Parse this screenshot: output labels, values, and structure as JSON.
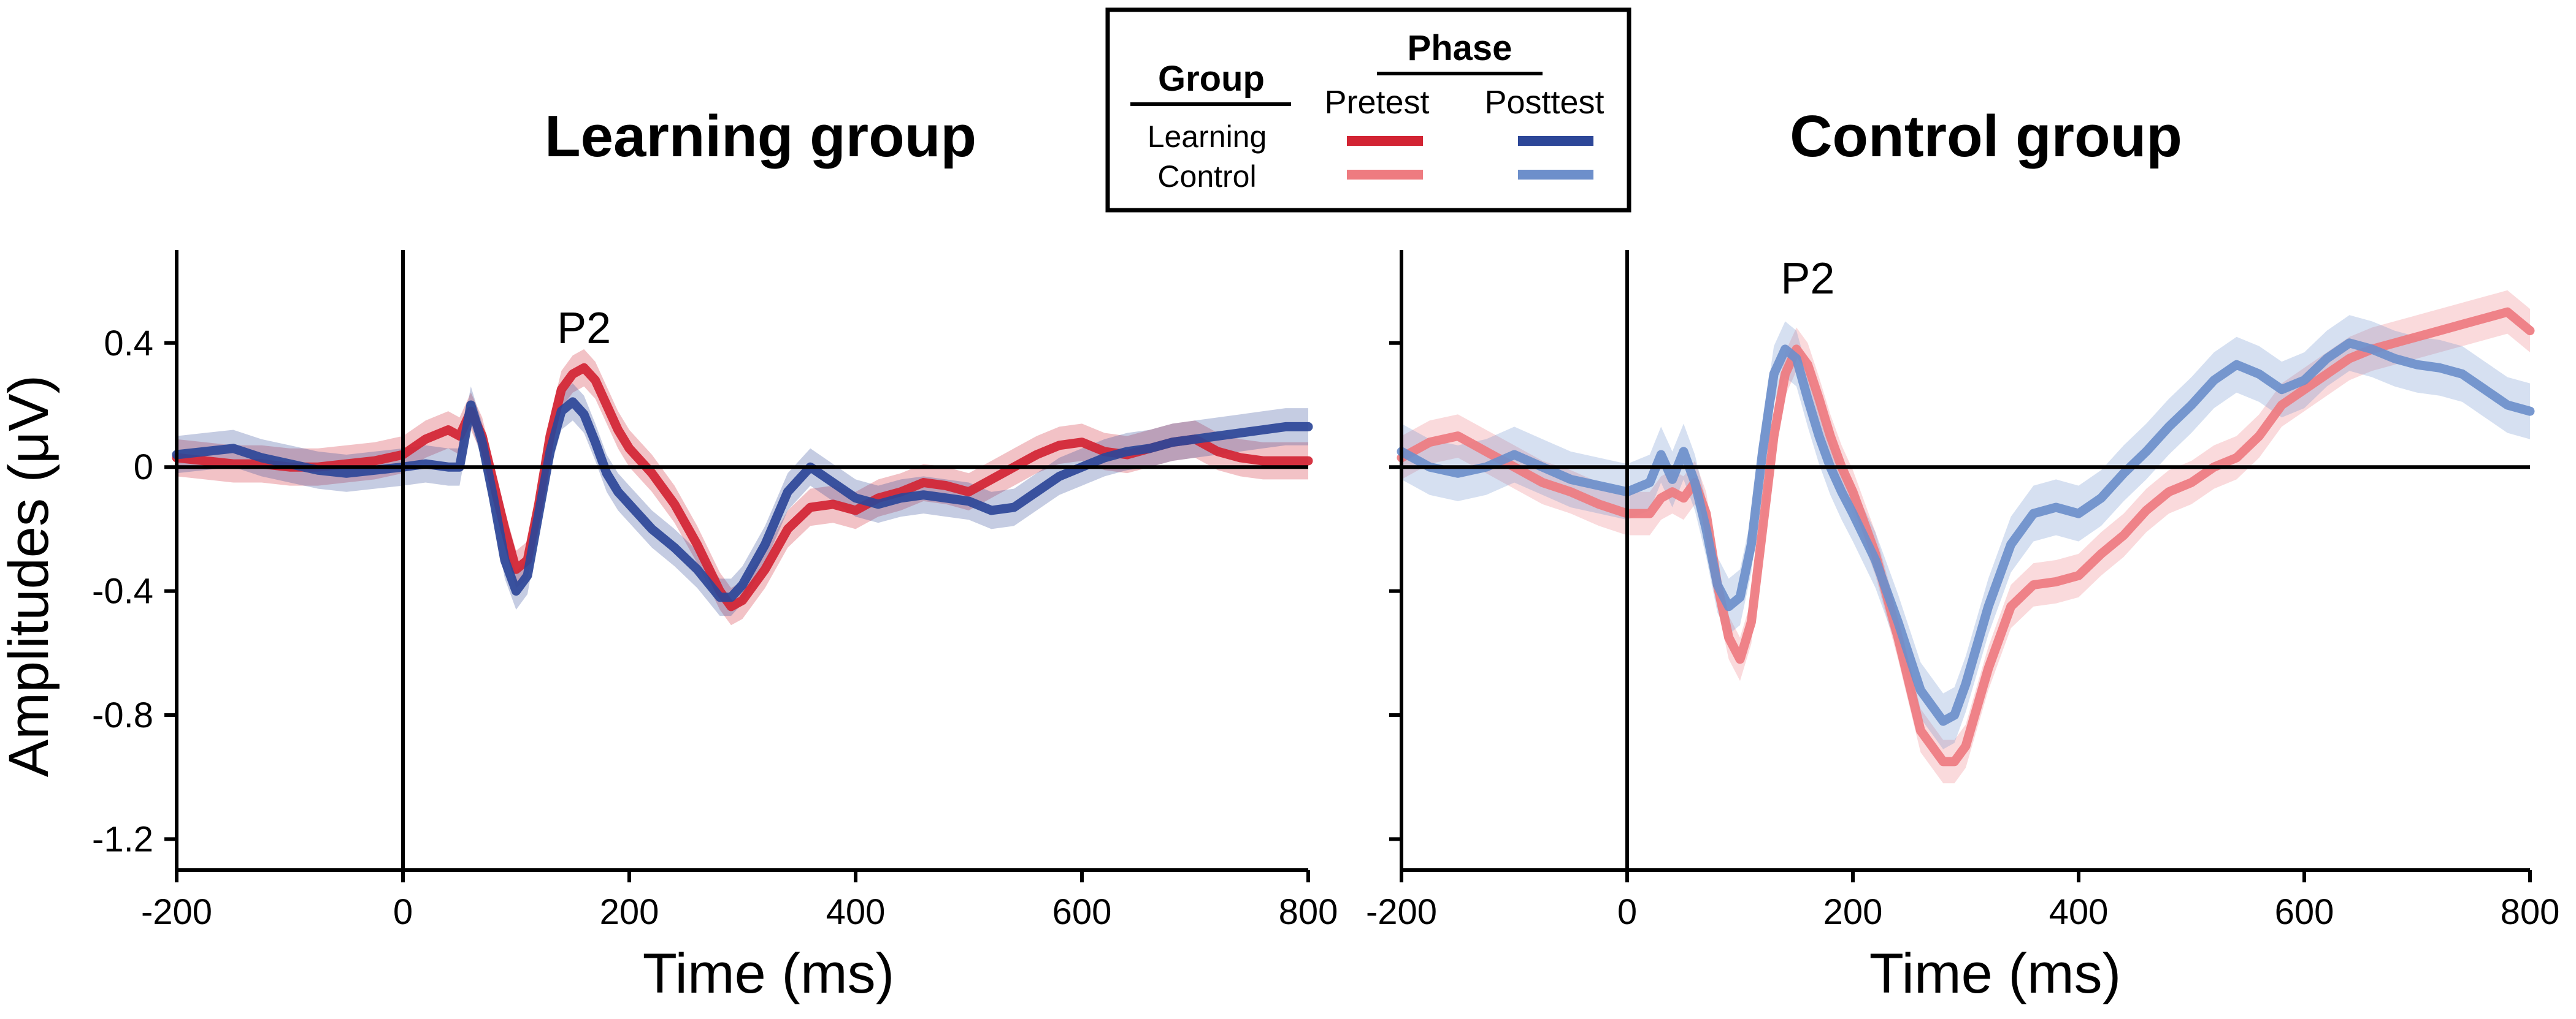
{
  "colors": {
    "learning_pretest": "#D22433",
    "learning_posttest": "#2D4798",
    "control_pretest": "#EE7B80",
    "control_posttest": "#6D8FCB",
    "axis": "#000000"
  },
  "legend": {
    "group_header": "Group",
    "phase_header": "Phase",
    "pretest_label": "Pretest",
    "posttest_label": "Posttest",
    "learning_label": "Learning",
    "control_label": "Control"
  },
  "y_axis_label": "Amplitudes (μV)",
  "chart_data": [
    {
      "type": "line",
      "title": "Learning group",
      "xlabel": "Time (ms)",
      "ylabel": "Amplitudes (μV)",
      "xlim": [
        -200,
        800
      ],
      "ylim": [
        -1.3,
        0.7
      ],
      "xticks": [
        -200,
        0,
        200,
        400,
        600,
        800
      ],
      "xtick_labels": [
        "-200",
        "0",
        "200",
        "400",
        "600",
        "800"
      ],
      "yticks": [
        0.4,
        0,
        -0.4,
        -0.8,
        -1.2
      ],
      "ytick_labels": [
        "0.4",
        "0",
        "-0.4",
        "-0.8",
        "-1.2"
      ],
      "annotation": {
        "text": "P2",
        "x": 160,
        "y": 0.4
      },
      "x": [
        -200,
        -175,
        -150,
        -125,
        -100,
        -75,
        -50,
        -25,
        0,
        20,
        40,
        50,
        60,
        70,
        80,
        90,
        100,
        110,
        120,
        130,
        140,
        150,
        160,
        170,
        180,
        190,
        200,
        220,
        240,
        260,
        280,
        290,
        300,
        320,
        340,
        360,
        380,
        400,
        420,
        440,
        460,
        480,
        500,
        520,
        540,
        560,
        580,
        600,
        620,
        640,
        660,
        680,
        700,
        720,
        740,
        760,
        780,
        800
      ],
      "series": [
        {
          "name": "Pretest",
          "color_key": "learning_pretest",
          "values": [
            0.03,
            0.02,
            0.01,
            0.01,
            0.0,
            0.0,
            0.01,
            0.02,
            0.04,
            0.09,
            0.12,
            0.1,
            0.18,
            0.1,
            -0.05,
            -0.2,
            -0.33,
            -0.3,
            -0.12,
            0.1,
            0.25,
            0.3,
            0.32,
            0.28,
            0.2,
            0.12,
            0.06,
            -0.02,
            -0.12,
            -0.25,
            -0.4,
            -0.45,
            -0.43,
            -0.33,
            -0.2,
            -0.13,
            -0.12,
            -0.14,
            -0.1,
            -0.08,
            -0.05,
            -0.06,
            -0.08,
            -0.04,
            0.0,
            0.04,
            0.07,
            0.08,
            0.05,
            0.04,
            0.06,
            0.08,
            0.09,
            0.05,
            0.03,
            0.02,
            0.02,
            0.02
          ],
          "error": 0.06
        },
        {
          "name": "Posttest",
          "color_key": "learning_posttest",
          "values": [
            0.04,
            0.05,
            0.06,
            0.03,
            0.01,
            -0.01,
            -0.02,
            -0.01,
            0.0,
            0.01,
            0.0,
            0.0,
            0.2,
            0.08,
            -0.1,
            -0.3,
            -0.4,
            -0.35,
            -0.15,
            0.05,
            0.18,
            0.21,
            0.17,
            0.08,
            -0.02,
            -0.08,
            -0.12,
            -0.2,
            -0.26,
            -0.33,
            -0.42,
            -0.42,
            -0.38,
            -0.25,
            -0.08,
            0.0,
            -0.05,
            -0.1,
            -0.12,
            -0.1,
            -0.09,
            -0.1,
            -0.11,
            -0.14,
            -0.13,
            -0.08,
            -0.03,
            0.0,
            0.03,
            0.05,
            0.06,
            0.08,
            0.09,
            0.1,
            0.11,
            0.12,
            0.13,
            0.13
          ],
          "error": 0.06
        }
      ]
    },
    {
      "type": "line",
      "title": "Control group",
      "xlabel": "Time (ms)",
      "ylabel": "",
      "xlim": [
        -200,
        800
      ],
      "ylim": [
        -1.3,
        0.7
      ],
      "xticks": [
        -200,
        0,
        200,
        400,
        600,
        800
      ],
      "xtick_labels": [
        "-200",
        "0",
        "200",
        "400",
        "600",
        "800"
      ],
      "yticks": [
        0.4,
        0,
        -0.4,
        -0.8,
        -1.2
      ],
      "ytick_labels": [],
      "annotation": {
        "text": "P2",
        "x": 160,
        "y": 0.56
      },
      "x": [
        -200,
        -175,
        -150,
        -125,
        -100,
        -75,
        -50,
        -25,
        0,
        20,
        30,
        40,
        50,
        60,
        70,
        80,
        90,
        100,
        110,
        120,
        130,
        140,
        150,
        160,
        170,
        180,
        190,
        200,
        220,
        240,
        260,
        280,
        290,
        300,
        320,
        340,
        360,
        380,
        400,
        420,
        440,
        460,
        480,
        500,
        520,
        540,
        560,
        580,
        600,
        620,
        640,
        660,
        680,
        700,
        720,
        740,
        760,
        780,
        800
      ],
      "series": [
        {
          "name": "Pretest",
          "color_key": "control_pretest",
          "values": [
            0.03,
            0.08,
            0.1,
            0.05,
            0.0,
            -0.05,
            -0.08,
            -0.12,
            -0.15,
            -0.15,
            -0.1,
            -0.08,
            -0.1,
            -0.05,
            -0.15,
            -0.38,
            -0.55,
            -0.62,
            -0.5,
            -0.2,
            0.1,
            0.3,
            0.38,
            0.33,
            0.22,
            0.1,
            0.0,
            -0.08,
            -0.28,
            -0.55,
            -0.85,
            -0.95,
            -0.95,
            -0.9,
            -0.65,
            -0.45,
            -0.38,
            -0.37,
            -0.35,
            -0.28,
            -0.22,
            -0.14,
            -0.08,
            -0.05,
            0.0,
            0.03,
            0.1,
            0.2,
            0.25,
            0.3,
            0.35,
            0.38,
            0.4,
            0.42,
            0.44,
            0.46,
            0.48,
            0.5,
            0.44
          ],
          "error": 0.07
        },
        {
          "name": "Posttest",
          "color_key": "control_posttest",
          "values": [
            0.05,
            0.0,
            -0.02,
            0.0,
            0.04,
            0.0,
            -0.04,
            -0.06,
            -0.08,
            -0.05,
            0.04,
            -0.04,
            0.05,
            -0.05,
            -0.2,
            -0.38,
            -0.45,
            -0.42,
            -0.25,
            0.05,
            0.3,
            0.38,
            0.35,
            0.22,
            0.1,
            0.0,
            -0.08,
            -0.15,
            -0.3,
            -0.5,
            -0.72,
            -0.82,
            -0.8,
            -0.7,
            -0.45,
            -0.25,
            -0.15,
            -0.13,
            -0.15,
            -0.1,
            -0.02,
            0.05,
            0.13,
            0.2,
            0.28,
            0.33,
            0.3,
            0.25,
            0.28,
            0.35,
            0.4,
            0.38,
            0.35,
            0.33,
            0.32,
            0.3,
            0.25,
            0.2,
            0.18
          ],
          "error": 0.09
        }
      ]
    }
  ]
}
